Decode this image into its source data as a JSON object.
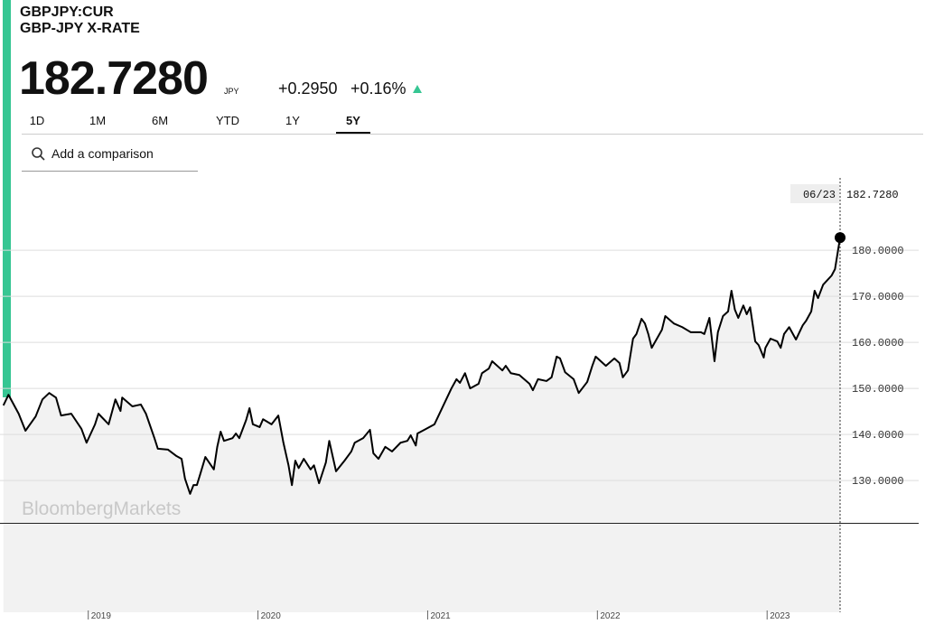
{
  "header": {
    "symbol": "GBPJPY:CUR",
    "name": "GBP-JPY X-RATE",
    "price": "182.7280",
    "currency": "JPY",
    "change": "+0.2950",
    "change_pct": "+0.16%"
  },
  "tabs": [
    "1D",
    "1M",
    "6M",
    "YTD",
    "1Y",
    "5Y"
  ],
  "active_tab": 5,
  "search_placeholder": "Add a comparison",
  "chart_data": {
    "type": "line",
    "watermark": "BloombergMarkets",
    "x": [
      2018.5,
      2018.53,
      2018.59,
      2018.63,
      2018.69,
      2018.73,
      2018.77,
      2018.81,
      2018.84,
      2018.9,
      2018.96,
      2018.99,
      2019.04,
      2019.06,
      2019.12,
      2019.16,
      2019.19,
      2019.2,
      2019.26,
      2019.31,
      2019.34,
      2019.39,
      2019.41,
      2019.47,
      2019.52,
      2019.55,
      2019.57,
      2019.6,
      2019.62,
      2019.64,
      2019.66,
      2019.69,
      2019.74,
      2019.76,
      2019.78,
      2019.8,
      2019.85,
      2019.87,
      2019.89,
      2019.93,
      2019.95,
      2019.97,
      2020.01,
      2020.03,
      2020.08,
      2020.12,
      2020.15,
      2020.18,
      2020.2,
      2020.22,
      2020.24,
      2020.27,
      2020.31,
      2020.33,
      2020.36,
      2020.4,
      2020.42,
      2020.46,
      2020.51,
      2020.55,
      2020.57,
      2020.62,
      2020.66,
      2020.68,
      2020.71,
      2020.75,
      2020.79,
      2020.84,
      2020.88,
      2020.9,
      2020.93,
      2020.94,
      2020.98,
      2021.04,
      2021.09,
      2021.14,
      2021.17,
      2021.19,
      2021.22,
      2021.25,
      2021.3,
      2021.32,
      2021.36,
      2021.38,
      2021.44,
      2021.46,
      2021.49,
      2021.54,
      2021.6,
      2021.62,
      2021.65,
      2021.7,
      2021.73,
      2021.76,
      2021.78,
      2021.81,
      2021.86,
      2021.89,
      2021.94,
      2021.97,
      2021.99,
      2022.05,
      2022.1,
      2022.13,
      2022.15,
      2022.18,
      2022.21,
      2022.23,
      2022.26,
      2022.28,
      2022.3,
      2022.32,
      2022.38,
      2022.4,
      2022.45,
      2022.5,
      2022.55,
      2022.61,
      2022.63,
      2022.66,
      2022.69,
      2022.71,
      2022.74,
      2022.77,
      2022.79,
      2022.81,
      2022.83,
      2022.86,
      2022.88,
      2022.9,
      2022.93,
      2022.95,
      2022.98,
      2022.99,
      2023.02,
      2023.06,
      2023.08,
      2023.1,
      2023.13,
      2023.17,
      2023.21,
      2023.23,
      2023.26,
      2023.28,
      2023.3,
      2023.33,
      2023.38,
      2023.4,
      2023.43
    ],
    "series": [
      {
        "name": "GBP-JPY X-RATE",
        "color": "#000000",
        "values": [
          146.3,
          148.6,
          144.5,
          140.8,
          143.9,
          147.6,
          149.0,
          148.0,
          144.1,
          144.5,
          141.2,
          138.2,
          142.2,
          144.5,
          142.2,
          147.6,
          145.1,
          148.0,
          146.1,
          146.5,
          144.5,
          139.2,
          136.9,
          136.7,
          135.3,
          134.7,
          130.4,
          127.1,
          129.0,
          129.0,
          131.4,
          135.1,
          132.4,
          137.3,
          140.6,
          138.6,
          139.2,
          140.2,
          139.2,
          143.1,
          145.7,
          142.2,
          141.6,
          143.3,
          142.2,
          144.1,
          138.2,
          133.3,
          129.0,
          134.3,
          132.7,
          134.7,
          132.4,
          133.3,
          129.4,
          133.9,
          138.6,
          132.0,
          134.3,
          136.3,
          138.2,
          139.2,
          141.0,
          135.9,
          134.7,
          137.3,
          136.3,
          138.2,
          138.6,
          139.8,
          137.6,
          140.2,
          141.0,
          142.2,
          146.1,
          150.0,
          152.0,
          151.2,
          153.3,
          150.0,
          151.0,
          153.3,
          154.3,
          155.9,
          153.9,
          154.9,
          153.3,
          152.9,
          151.0,
          149.6,
          152.0,
          151.6,
          152.4,
          156.9,
          156.5,
          153.5,
          152.0,
          149.0,
          151.4,
          154.9,
          156.9,
          154.9,
          156.5,
          155.5,
          152.4,
          153.9,
          160.8,
          161.8,
          165.1,
          164.1,
          161.8,
          158.8,
          162.7,
          165.7,
          164.1,
          163.3,
          162.2,
          162.2,
          161.8,
          165.3,
          155.9,
          162.2,
          165.7,
          166.7,
          171.2,
          167.1,
          165.3,
          168.0,
          166.1,
          167.6,
          160.2,
          159.4,
          156.7,
          158.8,
          160.8,
          160.2,
          158.8,
          161.8,
          163.3,
          160.6,
          163.7,
          164.7,
          166.7,
          171.2,
          169.6,
          172.5,
          174.5,
          175.9,
          182.728
        ]
      }
    ],
    "last_date": "06/23",
    "last_value_label": "182.7280",
    "xlim": [
      2018.48,
      2023.43
    ],
    "xticks": [
      2019,
      2020,
      2021,
      2022,
      2023
    ],
    "ylim": [
      120.8,
      195.7
    ],
    "yticks": [
      {
        "value": 130,
        "label": "130.0000"
      },
      {
        "value": 140,
        "label": "140.0000"
      },
      {
        "value": 150,
        "label": "150.0000"
      },
      {
        "value": 160,
        "label": "160.0000"
      },
      {
        "value": 170,
        "label": "170.0000"
      },
      {
        "value": 180,
        "label": "180.0000"
      }
    ],
    "grid": true,
    "fill": "#f2f2f2"
  }
}
